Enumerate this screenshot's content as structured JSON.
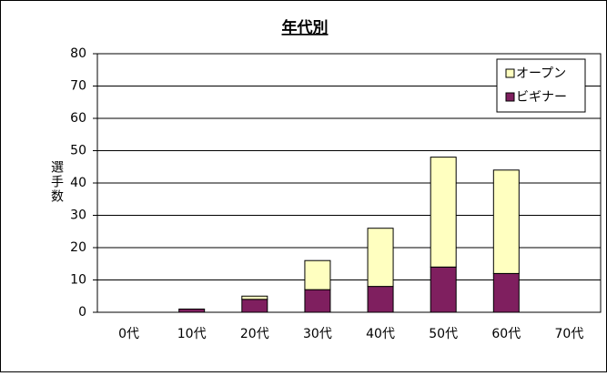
{
  "chart_data": {
    "type": "stacked_bar",
    "title": "年代別",
    "y_label": "選手数",
    "categories": [
      "0代",
      "10代",
      "20代",
      "30代",
      "40代",
      "50代",
      "60代",
      "70代"
    ],
    "series": [
      {
        "name": "ビギナー",
        "color": "#7f1f5f",
        "values": [
          0,
          1,
          4,
          7,
          8,
          14,
          12,
          0
        ]
      },
      {
        "name": "オープン",
        "color": "#ffffc0",
        "values": [
          0,
          0,
          1,
          9,
          18,
          34,
          32,
          0
        ]
      }
    ],
    "ylim": [
      0,
      80
    ],
    "yticks": [
      0,
      10,
      20,
      30,
      40,
      50,
      60,
      70,
      80
    ],
    "grid": true,
    "legend": "upper right"
  }
}
